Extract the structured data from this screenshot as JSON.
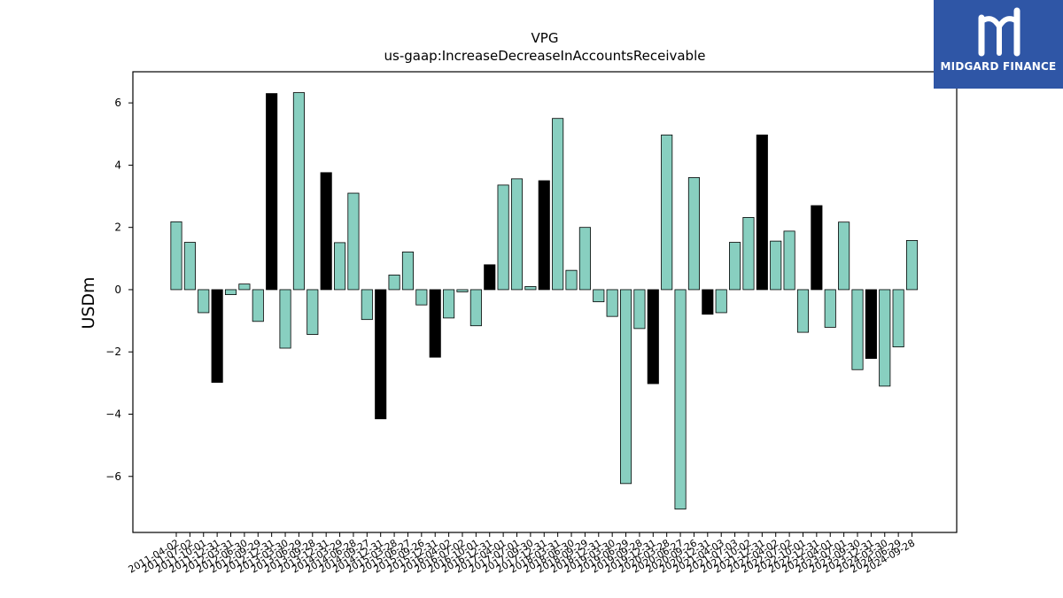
{
  "logo": {
    "text": "MIDGARD FINANCE"
  },
  "colors": {
    "positive_bar": "#88cfc0",
    "highlight_bar": "#000000",
    "logo_bg": "#2f56a6"
  },
  "chart_data": {
    "type": "bar",
    "title": "VPG",
    "subtitle": "us-gaap:IncreaseDecreaseInAccountsReceivable",
    "xlabel": "",
    "ylabel": "USDm",
    "ylim": [
      -7.8,
      7.0
    ],
    "yticks": [
      -6,
      -4,
      -2,
      0,
      2,
      4,
      6
    ],
    "grid": false,
    "categories": [
      "2011-04-02",
      "2011-07-02",
      "2011-10-01",
      "2011-12-31",
      "2012-03-31",
      "2012-06-30",
      "2012-09-29",
      "2012-12-31",
      "2013-03-30",
      "2013-06-29",
      "2013-09-28",
      "2013-12-31",
      "2014-03-29",
      "2014-06-28",
      "2014-09-27",
      "2014-12-31",
      "2015-03-28",
      "2015-06-27",
      "2015-09-26",
      "2015-12-31",
      "2016-04-02",
      "2016-07-02",
      "2016-10-01",
      "2016-12-31",
      "2017-04-01",
      "2017-07-01",
      "2017-09-30",
      "2017-12-31",
      "2018-03-31",
      "2018-06-30",
      "2018-09-29",
      "2018-12-31",
      "2019-03-30",
      "2019-06-29",
      "2019-09-28",
      "2019-12-31",
      "2020-03-28",
      "2020-06-27",
      "2020-09-26",
      "2020-12-31",
      "2021-04-03",
      "2021-07-03",
      "2021-10-02",
      "2021-12-31",
      "2022-04-02",
      "2022-07-02",
      "2022-10-01",
      "2022-12-31",
      "2023-04-01",
      "2023-07-01",
      "2023-09-30",
      "2023-12-31",
      "2024-03-30",
      "2024-06-29",
      "2024-09-28"
    ],
    "tick_labels": [
      "2011-04-02",
      "2011-07-02",
      "2011-10-01",
      "2011-12-31",
      "2012-03-31",
      "2012-06-30",
      "2012-09-29",
      "2012-12-31",
      "2013-03-30",
      "2013-06-29",
      "2013-09-28",
      "2013-12-31",
      "2014-03-29",
      "2014-06-28",
      "2014-09-27",
      "2014-12-31",
      "2015-03-28",
      "2015-06-27",
      "2015-09-26",
      "2015-12-31",
      "2016-04-02",
      "2016-07-02",
      "2016-10-01",
      "2016-12-31",
      "2017-04-01",
      "2017-07-01",
      "2017-09-30",
      "2017-12-31",
      "2018-03-31",
      "2018-06-30",
      "2018-09-29",
      "2018-12-31",
      "2019-03-30",
      "2019-06-29",
      "2019-09-28",
      "2019-12-31",
      "2020-03-28",
      "2020-06-27",
      "2020-09-26",
      "2020-12-31",
      "2021-04-03",
      "2021-07-03",
      "2021-10-02",
      "2021-12-31",
      "2022-04-02",
      "2022-07-02",
      "2022-10-01",
      "2022-12-31",
      "2023-04-01",
      "2023-07-01",
      "2023-09-30",
      "2023-12-31",
      "2024-03-30",
      "2024-06-29",
      "2024-09-28"
    ],
    "values": [
      2.18,
      1.52,
      -0.74,
      -2.98,
      -0.16,
      0.18,
      -1.02,
      6.3,
      -1.88,
      6.33,
      -1.44,
      3.76,
      1.51,
      3.1,
      -0.96,
      -4.15,
      0.47,
      1.21,
      -0.49,
      -2.17,
      -0.91,
      -0.07,
      -1.16,
      0.8,
      3.36,
      3.56,
      0.1,
      3.5,
      5.5,
      0.62,
      2.0,
      -0.39,
      -0.86,
      -6.23,
      -1.25,
      -3.02,
      4.97,
      -7.05,
      3.6,
      -0.79,
      -0.74,
      1.52,
      2.32,
      4.97,
      1.56,
      1.88,
      -1.37,
      2.7,
      -1.21,
      2.17,
      -2.57,
      -2.21,
      -3.1,
      -1.84,
      1.58
    ],
    "highlight": [
      false,
      false,
      false,
      true,
      false,
      false,
      false,
      true,
      false,
      false,
      false,
      true,
      false,
      false,
      false,
      true,
      false,
      false,
      false,
      true,
      false,
      false,
      false,
      true,
      false,
      false,
      false,
      true,
      false,
      false,
      false,
      false,
      false,
      false,
      false,
      true,
      false,
      false,
      false,
      true,
      false,
      false,
      false,
      true,
      false,
      false,
      false,
      true,
      false,
      false,
      false,
      true,
      false,
      false,
      false
    ]
  }
}
